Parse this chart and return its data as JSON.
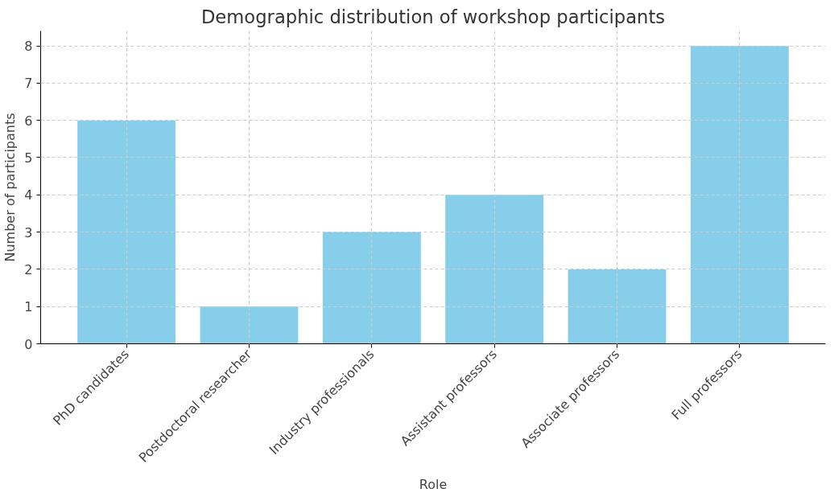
{
  "chart_data": {
    "type": "bar",
    "title": "Demographic distribution of workshop participants",
    "xlabel": "Role",
    "ylabel": "Number of participants",
    "categories": [
      "PhD candidates",
      "Postdoctoral researcher",
      "Industry professionals",
      "Assistant professors",
      "Associate professors",
      "Full professors"
    ],
    "values": [
      6,
      1,
      3,
      4,
      2,
      8
    ],
    "color": "#87ceeb",
    "ylim": [
      0,
      8.4
    ],
    "yticks": [
      0,
      1,
      2,
      3,
      4,
      5,
      6,
      7,
      8
    ],
    "grid": true
  }
}
